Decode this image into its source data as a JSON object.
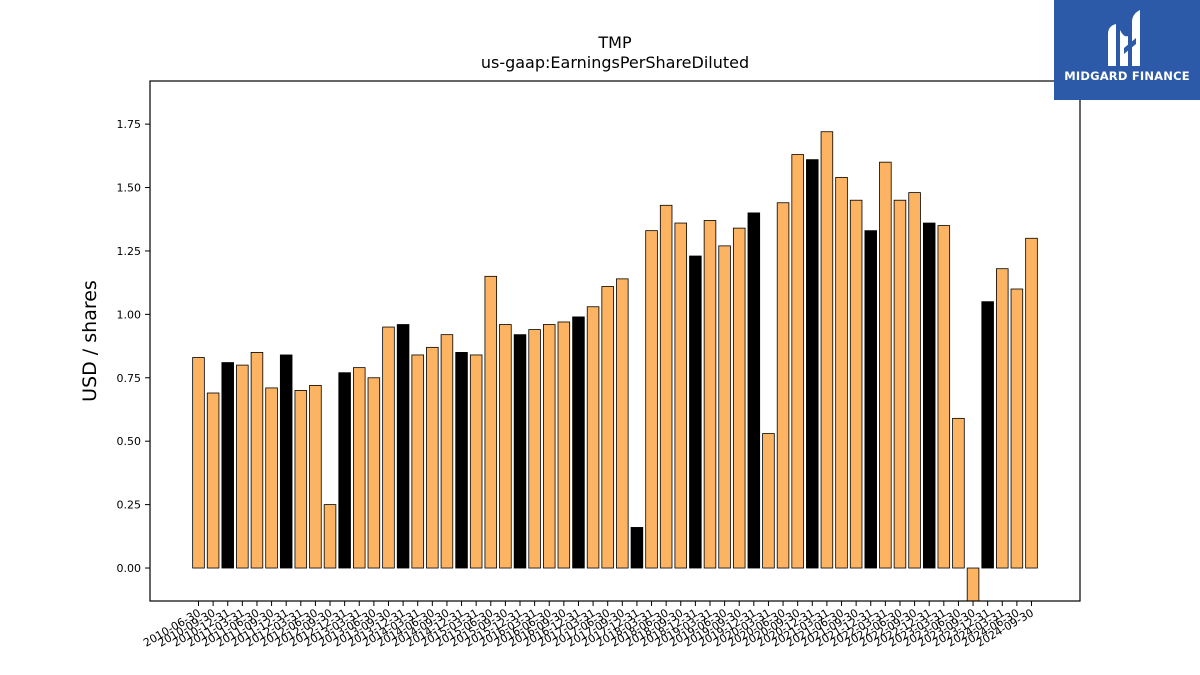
{
  "brand": {
    "name": "MIDGARD FINANCE",
    "bg_color": "#2d5aa8",
    "icon": "midgard-logo-icon"
  },
  "chart_data": {
    "type": "bar",
    "title": "TMP",
    "subtitle": "us-gaap:EarningsPerShareDiluted",
    "xlabel": "",
    "ylabel": "USD / shares",
    "ylim": [
      -0.13,
      1.92
    ],
    "yticks": [
      "0.00",
      "0.25",
      "0.50",
      "0.75",
      "1.00",
      "1.25",
      "1.50",
      "1.75"
    ],
    "grid": false,
    "colors": {
      "quarter": "#fdb462",
      "annual": "#000000",
      "edge": "#000000"
    },
    "categories": [
      "2010-06-30",
      "2010-09-30",
      "2010-12-31",
      "2011-03-31",
      "2011-06-30",
      "2011-09-30",
      "2011-12-31",
      "2012-03-31",
      "2012-06-30",
      "2012-09-30",
      "2012-12-31",
      "2013-03-31",
      "2013-06-30",
      "2013-09-30",
      "2013-12-31",
      "2014-03-31",
      "2014-06-30",
      "2014-09-30",
      "2014-12-31",
      "2015-03-31",
      "2015-06-30",
      "2015-09-30",
      "2015-12-31",
      "2016-03-31",
      "2016-06-30",
      "2016-09-30",
      "2016-12-31",
      "2017-03-31",
      "2017-06-30",
      "2017-09-30",
      "2017-12-31",
      "2018-03-31",
      "2018-06-30",
      "2018-09-30",
      "2018-12-31",
      "2019-03-31",
      "2019-06-30",
      "2019-09-30",
      "2019-12-31",
      "2020-03-31",
      "2020-06-30",
      "2020-09-30",
      "2020-12-31",
      "2021-03-31",
      "2021-06-30",
      "2021-09-30",
      "2021-12-31",
      "2022-03-31",
      "2022-06-30",
      "2022-09-30",
      "2022-12-31",
      "2023-03-31",
      "2023-06-30",
      "2023-09-30",
      "2023-12-31",
      "2024-03-31",
      "2024-06-30",
      "2024-09-30"
    ],
    "values": [
      0.83,
      0.69,
      0.81,
      0.8,
      0.85,
      0.71,
      0.84,
      0.7,
      0.72,
      0.25,
      0.77,
      0.79,
      0.75,
      0.95,
      0.96,
      0.84,
      0.87,
      0.92,
      0.85,
      0.84,
      1.15,
      0.96,
      0.92,
      0.94,
      0.96,
      0.97,
      0.99,
      1.03,
      1.11,
      1.14,
      0.16,
      1.33,
      1.43,
      1.36,
      1.23,
      1.37,
      1.27,
      1.34,
      1.4,
      0.53,
      1.44,
      1.63,
      1.61,
      1.72,
      1.54,
      1.45,
      1.33,
      1.6,
      1.45,
      1.48,
      1.36,
      1.35,
      0.59,
      -0.16,
      1.05,
      1.18,
      1.1,
      1.3
    ],
    "annual": [
      false,
      false,
      true,
      false,
      false,
      false,
      true,
      false,
      false,
      false,
      true,
      false,
      false,
      false,
      true,
      false,
      false,
      false,
      true,
      false,
      false,
      false,
      true,
      false,
      false,
      false,
      true,
      false,
      false,
      false,
      true,
      false,
      false,
      false,
      true,
      false,
      false,
      false,
      true,
      false,
      false,
      false,
      true,
      false,
      false,
      false,
      true,
      false,
      false,
      false,
      true,
      false,
      false,
      false,
      true,
      false,
      false,
      false
    ]
  }
}
